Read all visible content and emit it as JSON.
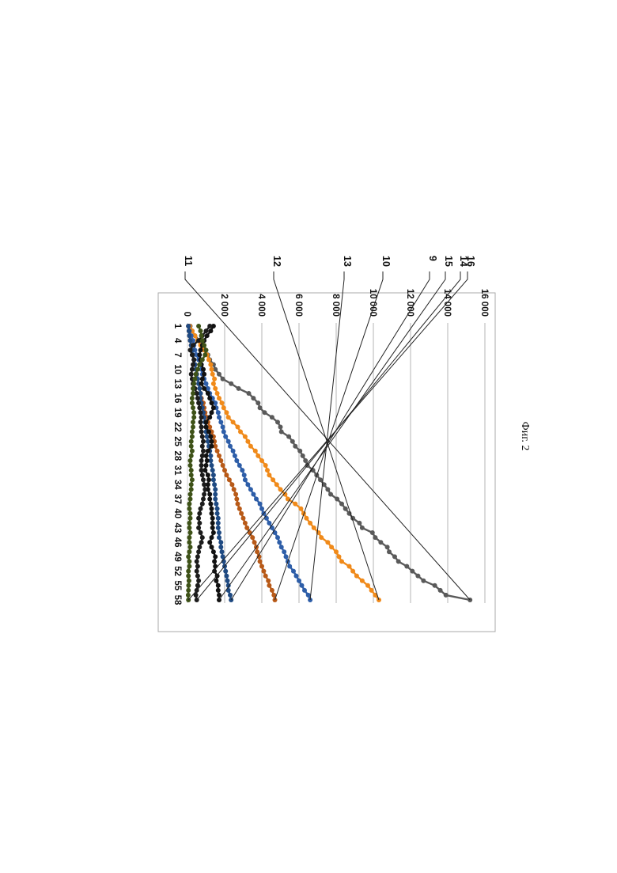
{
  "caption": "Фиг. 2",
  "chart_data": {
    "type": "line",
    "orientation": "rotated-90-clockwise",
    "x": [
      1,
      2,
      3,
      4,
      5,
      6,
      7,
      8,
      9,
      10,
      11,
      12,
      13,
      14,
      15,
      16,
      17,
      18,
      19,
      20,
      21,
      22,
      23,
      24,
      25,
      26,
      27,
      28,
      29,
      30,
      31,
      32,
      33,
      34,
      35,
      36,
      37,
      38,
      39,
      40,
      41,
      42,
      43,
      44,
      45,
      46,
      47,
      48,
      49,
      50,
      51,
      52,
      53,
      54,
      55,
      56,
      57,
      58
    ],
    "x_tick_labels": [
      "1",
      "4",
      "7",
      "10",
      "13",
      "16",
      "19",
      "22",
      "25",
      "28",
      "31",
      "34",
      "37",
      "40",
      "43",
      "46",
      "49",
      "52",
      "55",
      "58"
    ],
    "ylim": [
      0,
      16000
    ],
    "y_ticks": [
      0,
      2000,
      4000,
      6000,
      8000,
      10000,
      12000,
      14000,
      16000
    ],
    "y_tick_labels": [
      "0",
      "2 000",
      "4 000",
      "6 000",
      "8 000",
      "10 000",
      "12 000",
      "14 000",
      "16 000"
    ],
    "grid": true,
    "legend": "direct-labels",
    "series": [
      {
        "name": "11",
        "color": "#5a5a5a",
        "values": [
          150,
          250,
          400,
          650,
          850,
          950,
          1100,
          1200,
          1400,
          1500,
          1700,
          1900,
          2350,
          2750,
          3300,
          3550,
          3800,
          3900,
          4150,
          4550,
          4850,
          5000,
          5050,
          5450,
          5650,
          5800,
          6050,
          6200,
          6350,
          6450,
          6750,
          6950,
          7150,
          7350,
          7550,
          7700,
          8050,
          8300,
          8500,
          8700,
          8900,
          9250,
          9400,
          9950,
          10100,
          10400,
          10750,
          10850,
          11150,
          11350,
          11800,
          12100,
          12400,
          12700,
          13300,
          13600,
          13900,
          15200
        ]
      },
      {
        "name": "12",
        "color": "#f08a1a",
        "values": [
          120,
          250,
          400,
          550,
          700,
          900,
          1050,
          1150,
          1250,
          1300,
          1350,
          1450,
          1400,
          1500,
          1600,
          1700,
          1850,
          1950,
          2100,
          2200,
          2450,
          2700,
          2850,
          3100,
          3250,
          3400,
          3650,
          3800,
          4000,
          4200,
          4300,
          4400,
          4600,
          4800,
          5000,
          5250,
          5400,
          5800,
          6100,
          6250,
          6400,
          6600,
          6800,
          7050,
          7200,
          7550,
          7750,
          8000,
          8150,
          8300,
          8700,
          8900,
          9100,
          9400,
          9700,
          9900,
          10100,
          10300
        ]
      },
      {
        "name": "13",
        "color": "#2e5ea8",
        "values": [
          50,
          100,
          200,
          300,
          350,
          400,
          500,
          600,
          700,
          750,
          800,
          900,
          1000,
          1100,
          1200,
          1350,
          1500,
          1550,
          1650,
          1700,
          1800,
          1900,
          1950,
          2050,
          2200,
          2300,
          2450,
          2550,
          2650,
          2800,
          2950,
          3050,
          3100,
          3250,
          3400,
          3550,
          3700,
          3900,
          4000,
          4100,
          4250,
          4400,
          4550,
          4700,
          4850,
          4950,
          5050,
          5200,
          5300,
          5400,
          5500,
          5700,
          5850,
          6000,
          6150,
          6300,
          6500,
          6600
        ]
      },
      {
        "name": "10",
        "color": "#b85a18",
        "values": [
          50,
          80,
          100,
          150,
          200,
          200,
          300,
          350,
          400,
          450,
          500,
          550,
          600,
          650,
          700,
          750,
          850,
          900,
          950,
          1050,
          1100,
          1200,
          1300,
          1400,
          1450,
          1500,
          1600,
          1700,
          1800,
          1900,
          2000,
          2100,
          2250,
          2400,
          2500,
          2600,
          2650,
          2700,
          2800,
          2900,
          3000,
          3100,
          3200,
          3350,
          3500,
          3600,
          3700,
          3750,
          3850,
          3900,
          4000,
          4100,
          4200,
          4350,
          4400,
          4550,
          4650,
          4700
        ]
      },
      {
        "name": "9",
        "color": "#1f4a82",
        "values": [
          50,
          80,
          100,
          150,
          200,
          250,
          300,
          350,
          400,
          450,
          500,
          550,
          600,
          650,
          700,
          700,
          750,
          800,
          850,
          900,
          950,
          1000,
          1000,
          1050,
          1100,
          1150,
          1200,
          1250,
          1250,
          1300,
          1350,
          1400,
          1400,
          1450,
          1500,
          1500,
          1500,
          1550,
          1600,
          1600,
          1650,
          1650,
          1650,
          1700,
          1700,
          1800,
          1800,
          1850,
          1900,
          1950,
          2000,
          2050,
          2100,
          2150,
          2200,
          2200,
          2300,
          2350
        ]
      },
      {
        "name": "15",
        "color": "#121212",
        "values": [
          1400,
          1250,
          1050,
          900,
          800,
          700,
          650,
          700,
          750,
          850,
          900,
          800,
          750,
          900,
          1100,
          1200,
          1300,
          1400,
          1300,
          1200,
          1000,
          1000,
          1150,
          1250,
          1300,
          1300,
          1100,
          1000,
          1050,
          1000,
          950,
          1100,
          1150,
          1100,
          1100,
          1200,
          1200,
          1250,
          1300,
          1300,
          1350,
          1350,
          1350,
          1400,
          1300,
          1200,
          1300,
          1400,
          1500,
          1450,
          1500,
          1450,
          1600,
          1550,
          1650,
          1650,
          1700,
          1700
        ]
      },
      {
        "name": "14",
        "color": "#1c1c1c",
        "values": [
          1200,
          1000,
          800,
          600,
          300,
          150,
          250,
          350,
          300,
          250,
          200,
          250,
          300,
          400,
          500,
          550,
          600,
          650,
          700,
          750,
          700,
          750,
          750,
          800,
          850,
          800,
          850,
          800,
          750,
          750,
          750,
          800,
          850,
          900,
          950,
          900,
          850,
          800,
          700,
          650,
          600,
          650,
          600,
          700,
          800,
          750,
          650,
          600,
          550,
          500,
          550,
          500,
          550,
          600,
          550,
          500,
          450,
          500
        ]
      },
      {
        "name": "16",
        "color": "#3e5218",
        "values": [
          600,
          700,
          750,
          800,
          900,
          1000,
          950,
          800,
          650,
          550,
          450,
          400,
          350,
          300,
          300,
          250,
          250,
          300,
          350,
          350,
          300,
          300,
          250,
          250,
          200,
          200,
          250,
          200,
          150,
          150,
          200,
          200,
          250,
          200,
          200,
          150,
          150,
          100,
          100,
          150,
          150,
          100,
          100,
          150,
          100,
          100,
          150,
          100,
          50,
          100,
          100,
          50,
          50,
          80,
          60,
          50,
          40,
          50
        ]
      }
    ]
  }
}
